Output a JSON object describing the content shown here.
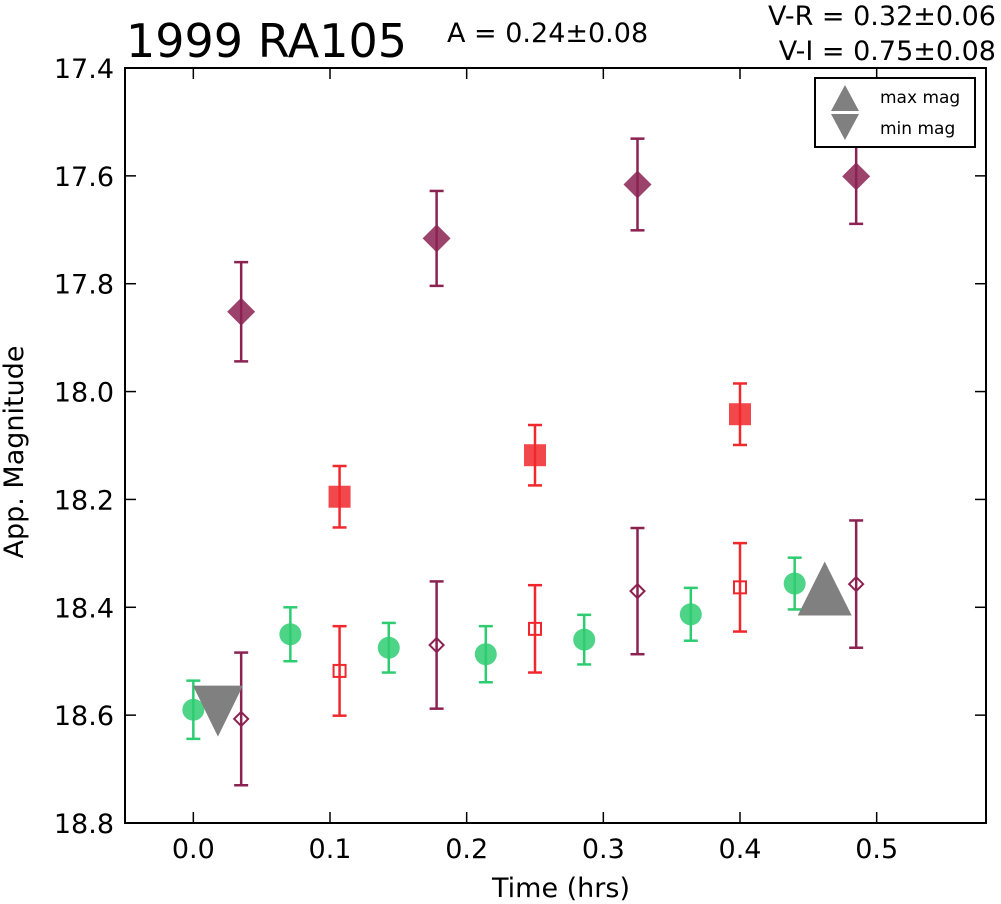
{
  "chart_data": {
    "type": "scatter",
    "title": "1999 RA105",
    "annotations": {
      "amplitude": "A  = 0.24±0.08",
      "v_r": "V-R = 0.32±0.06",
      "v_i": "V-I  = 0.75±0.08"
    },
    "xlabel": "Time (hrs)",
    "ylabel": "App. Magnitude",
    "xlim": [
      -0.05,
      0.58
    ],
    "ylim": [
      18.8,
      17.4
    ],
    "y_inverted": true,
    "xticks": [
      "0.0",
      "0.1",
      "0.2",
      "0.3",
      "0.4",
      "0.5"
    ],
    "xtick_values": [
      0.0,
      0.1,
      0.2,
      0.3,
      0.4,
      0.5
    ],
    "yticks": [
      "17.4",
      "17.6",
      "17.8",
      "18.0",
      "18.2",
      "18.4",
      "18.6",
      "18.8"
    ],
    "ytick_values": [
      17.4,
      17.6,
      17.8,
      18.0,
      18.2,
      18.4,
      18.6,
      18.8
    ],
    "legend": {
      "placement": "top-right",
      "entries": [
        {
          "label": "max mag",
          "marker": "triangle-up"
        },
        {
          "label": "min mag",
          "marker": "triangle-down"
        }
      ]
    },
    "series": [
      {
        "marker": "circle",
        "filled": true,
        "color": "#2ecc71",
        "points": [
          {
            "x": 0.0,
            "y": 18.59,
            "err": 0.054
          },
          {
            "x": 0.071,
            "y": 18.45,
            "err": 0.05
          },
          {
            "x": 0.143,
            "y": 18.475,
            "err": 0.046
          },
          {
            "x": 0.214,
            "y": 18.487,
            "err": 0.052
          },
          {
            "x": 0.286,
            "y": 18.46,
            "err": 0.046
          },
          {
            "x": 0.364,
            "y": 18.413,
            "err": 0.049
          },
          {
            "x": 0.44,
            "y": 18.356,
            "err": 0.048
          }
        ]
      },
      {
        "marker": "square",
        "filled": true,
        "color": "#f0282d",
        "points": [
          {
            "x": 0.107,
            "y": 18.195,
            "err": 0.057
          },
          {
            "x": 0.25,
            "y": 18.118,
            "err": 0.056
          },
          {
            "x": 0.4,
            "y": 18.042,
            "err": 0.057
          }
        ]
      },
      {
        "marker": "square",
        "filled": false,
        "color": "#f0282d",
        "points": [
          {
            "x": 0.107,
            "y": 18.518,
            "err": 0.083
          },
          {
            "x": 0.25,
            "y": 18.44,
            "err": 0.081
          },
          {
            "x": 0.4,
            "y": 18.363,
            "err": 0.082
          }
        ]
      },
      {
        "marker": "diamond",
        "filled": true,
        "color": "#8b2252",
        "points": [
          {
            "x": 0.035,
            "y": 17.852,
            "err": 0.092
          },
          {
            "x": 0.178,
            "y": 17.716,
            "err": 0.088
          },
          {
            "x": 0.325,
            "y": 17.616,
            "err": 0.085
          },
          {
            "x": 0.485,
            "y": 17.601,
            "err": 0.088
          }
        ]
      },
      {
        "marker": "diamond",
        "filled": false,
        "color": "#8b2252",
        "points": [
          {
            "x": 0.035,
            "y": 18.607,
            "err": 0.123
          },
          {
            "x": 0.178,
            "y": 18.47,
            "err": 0.118
          },
          {
            "x": 0.325,
            "y": 18.37,
            "err": 0.117
          },
          {
            "x": 0.485,
            "y": 18.357,
            "err": 0.118
          }
        ]
      }
    ],
    "extrema": [
      {
        "label": "max mag",
        "marker": "triangle-up",
        "x": 0.462,
        "y": 18.367,
        "color": "#808080"
      },
      {
        "label": "min mag",
        "marker": "triangle-down",
        "x": 0.018,
        "y": 18.588,
        "color": "#808080"
      }
    ]
  }
}
